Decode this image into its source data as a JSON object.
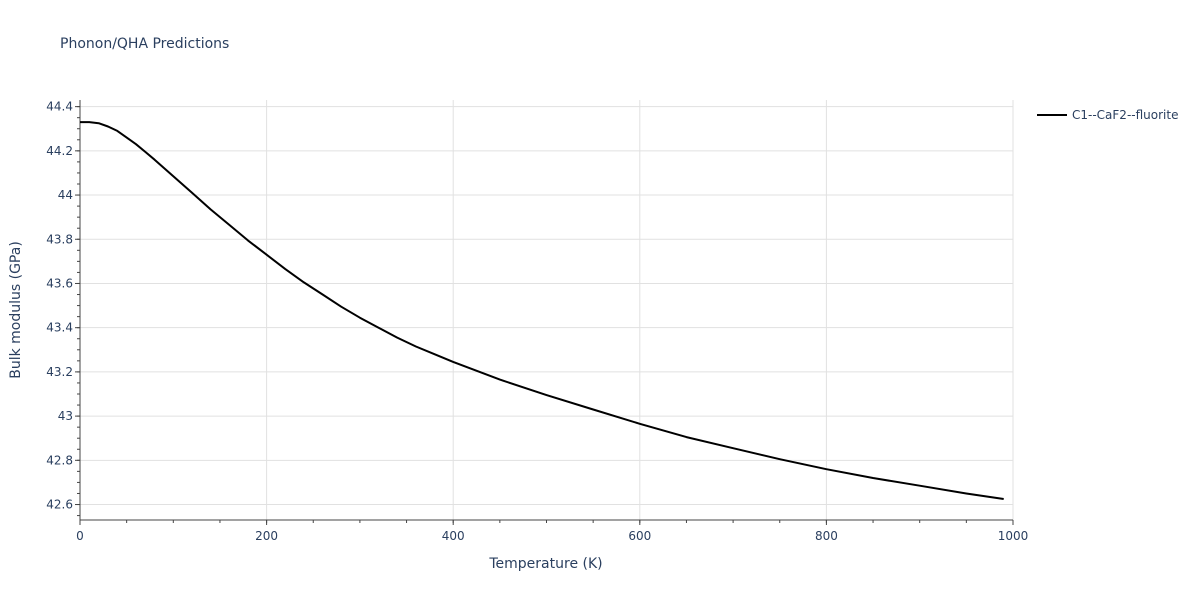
{
  "chart_data": {
    "type": "line",
    "title": "Phonon/QHA Predictions",
    "xlabel": "Temperature (K)",
    "ylabel": "Bulk modulus (GPa)",
    "xlim": [
      0,
      1000
    ],
    "ylim": [
      42.53,
      44.43
    ],
    "x_ticks": [
      0,
      200,
      400,
      600,
      800,
      1000
    ],
    "x_tick_labels": [
      "0",
      "200",
      "400",
      "600",
      "800",
      "1000"
    ],
    "y_ticks": [
      42.6,
      42.8,
      43.0,
      43.2,
      43.4,
      43.6,
      43.8,
      44.0,
      44.2,
      44.4
    ],
    "y_tick_labels": [
      "42.6",
      "42.8",
      "43",
      "43.2",
      "43.4",
      "43.6",
      "43.8",
      "44",
      "44.2",
      "44.4"
    ],
    "grid": true,
    "legend_position": "top-right",
    "series": [
      {
        "name": "C1--CaF2--fluorite",
        "color": "#000000",
        "x": [
          0,
          10,
          20,
          30,
          40,
          50,
          60,
          70,
          80,
          100,
          120,
          140,
          160,
          180,
          200,
          220,
          240,
          260,
          280,
          300,
          320,
          340,
          360,
          380,
          400,
          450,
          500,
          550,
          600,
          650,
          700,
          750,
          800,
          850,
          900,
          950,
          990
        ],
        "y": [
          44.33,
          44.33,
          44.325,
          44.31,
          44.29,
          44.26,
          44.23,
          44.195,
          44.16,
          44.085,
          44.01,
          43.935,
          43.865,
          43.795,
          43.73,
          43.665,
          43.605,
          43.55,
          43.495,
          43.445,
          43.4,
          43.355,
          43.315,
          43.28,
          43.245,
          43.165,
          43.095,
          43.03,
          42.965,
          42.905,
          42.855,
          42.805,
          42.76,
          42.72,
          42.685,
          42.65,
          42.625
        ]
      }
    ]
  }
}
